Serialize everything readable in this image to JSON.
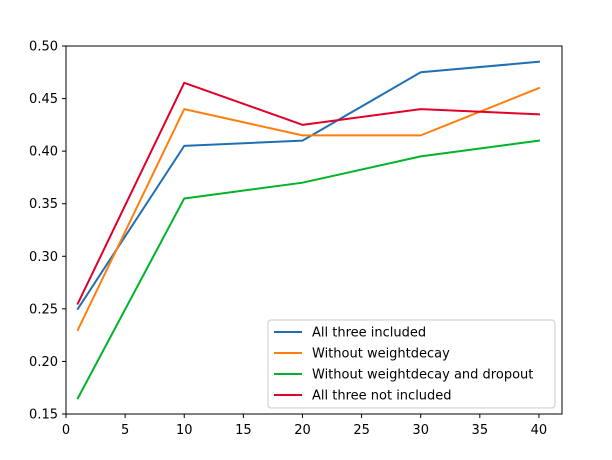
{
  "chart_data": {
    "type": "line",
    "title": "",
    "xlabel": "",
    "ylabel": "",
    "xlim": [
      0,
      41.95
    ],
    "ylim": [
      0.15,
      0.5
    ],
    "xticks": [
      0,
      5,
      10,
      15,
      20,
      25,
      30,
      35,
      40
    ],
    "xtick_labels": [
      "0",
      "5",
      "10",
      "15",
      "20",
      "25",
      "30",
      "35",
      "40"
    ],
    "yticks": [
      0.15,
      0.2,
      0.25,
      0.3,
      0.35,
      0.4,
      0.45,
      0.5
    ],
    "ytick_labels": [
      "0.15",
      "0.20",
      "0.25",
      "0.30",
      "0.35",
      "0.40",
      "0.45",
      "0.50"
    ],
    "grid": false,
    "legend_position": "bottom-right",
    "x": [
      1,
      10,
      20,
      30,
      40
    ],
    "series": [
      {
        "name": "All three included",
        "color": "#1f6fb4",
        "values": [
          0.25,
          0.405,
          0.41,
          0.475,
          0.485
        ]
      },
      {
        "name": "Without weightdecay",
        "color": "#ff7f0e",
        "values": [
          0.23,
          0.44,
          0.415,
          0.415,
          0.46
        ]
      },
      {
        "name": "Without weightdecay and dropout",
        "color": "#00b32a",
        "values": [
          0.165,
          0.355,
          0.37,
          0.395,
          0.41
        ]
      },
      {
        "name": "All three not included",
        "color": "#e0002a",
        "values": [
          0.255,
          0.465,
          0.425,
          0.44,
          0.435
        ]
      }
    ]
  }
}
